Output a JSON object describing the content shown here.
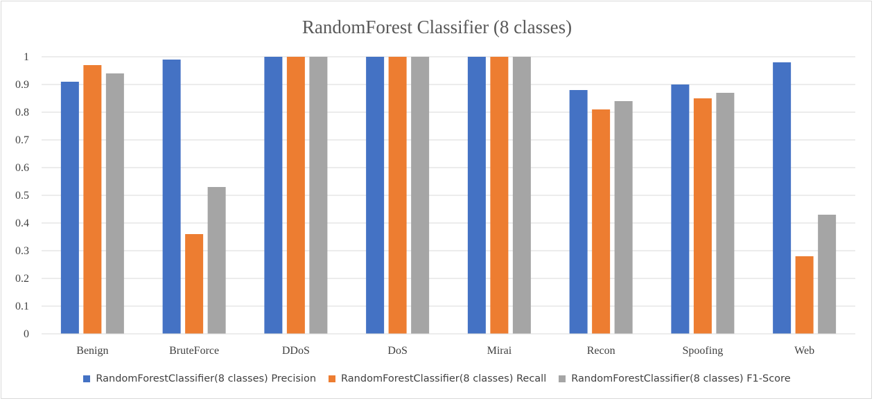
{
  "chart_data": {
    "type": "bar",
    "title": "RandomForest Classifier (8 classes)",
    "categories": [
      "Benign",
      "BruteForce",
      "DDoS",
      "DoS",
      "Mirai",
      "Recon",
      "Spoofing",
      "Web"
    ],
    "series": [
      {
        "name": "RandomForestClassifier(8 classes) Precision",
        "color": "#4472c4",
        "values": [
          0.91,
          0.99,
          1.0,
          1.0,
          1.0,
          0.88,
          0.9,
          0.98
        ]
      },
      {
        "name": "RandomForestClassifier(8 classes) Recall",
        "color": "#ed7d31",
        "values": [
          0.97,
          0.36,
          1.0,
          1.0,
          1.0,
          0.81,
          0.85,
          0.28
        ]
      },
      {
        "name": "RandomForestClassifier(8 classes) F1-Score",
        "color": "#a5a5a5",
        "values": [
          0.94,
          0.53,
          1.0,
          1.0,
          1.0,
          0.84,
          0.87,
          0.43
        ]
      }
    ],
    "y_ticks": [
      "0",
      "0.1",
      "0.2",
      "0.3",
      "0.4",
      "0.5",
      "0.6",
      "0.7",
      "0.8",
      "0.9",
      "1"
    ],
    "ylim": [
      0,
      1
    ],
    "grid": true,
    "legend_position": "bottom"
  }
}
